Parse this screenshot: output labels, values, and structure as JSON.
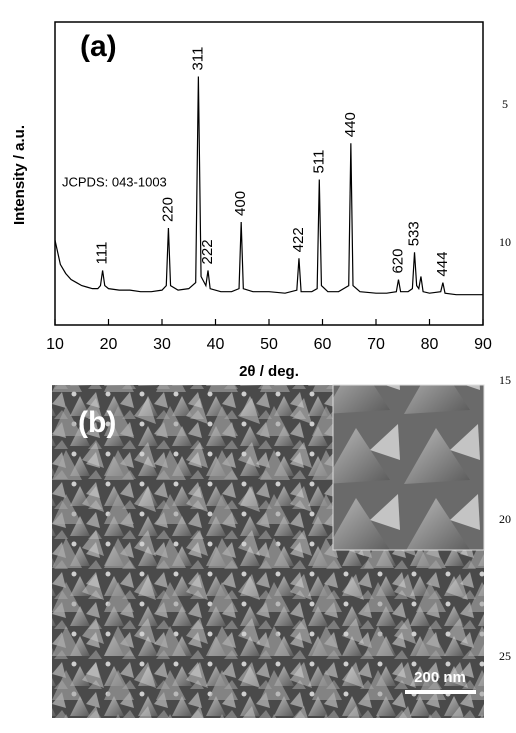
{
  "chart_data": {
    "type": "line",
    "panel_label": "(a)",
    "xlabel": "2θ / deg.",
    "ylabel": "Intensity / a.u.",
    "annotation": "JCPDS: 043-1003",
    "xlim": [
      10,
      90
    ],
    "xticks": [
      10,
      20,
      30,
      40,
      50,
      60,
      70,
      80,
      90
    ],
    "ylim": [
      0,
      100
    ],
    "color": "#000000",
    "x": [
      10,
      11,
      12,
      13,
      14,
      15,
      16,
      17,
      18,
      18.5,
      18.9,
      19.3,
      20,
      22,
      24,
      26,
      28,
      30,
      30.8,
      31.2,
      31.6,
      33,
      35,
      36.3,
      36.8,
      37.3,
      38.2,
      38.6,
      39,
      41,
      43,
      44.4,
      44.8,
      45.2,
      47,
      50,
      53,
      55.2,
      55.6,
      56,
      58,
      59,
      59.4,
      59.8,
      61,
      63,
      64.9,
      65.3,
      65.7,
      67,
      70,
      72,
      73.8,
      74.2,
      74.6,
      76,
      76.8,
      77.2,
      77.6,
      78,
      78.4,
      78.8,
      80,
      82.1,
      82.5,
      82.9,
      85,
      88,
      90
    ],
    "values": [
      28,
      20,
      17,
      15,
      14,
      13,
      12.5,
      12,
      12,
      13,
      18,
      13,
      12,
      11.5,
      11.5,
      11,
      11,
      11.5,
      13,
      32,
      13,
      11.5,
      12,
      14,
      82,
      16,
      13,
      18,
      12,
      11,
      11,
      12,
      34,
      12,
      11,
      11,
      10.5,
      11.5,
      22,
      11,
      11,
      12,
      48,
      13,
      11,
      11,
      13,
      60,
      13,
      11,
      10.5,
      10.5,
      11,
      15,
      11,
      11,
      12,
      24,
      13,
      12,
      16,
      11,
      10.5,
      11,
      14,
      10.5,
      10,
      10,
      10
    ],
    "peaks": [
      {
        "label": "111",
        "x": 18.9,
        "value": 18
      },
      {
        "label": "220",
        "x": 31.2,
        "value": 32
      },
      {
        "label": "311",
        "x": 36.8,
        "value": 82
      },
      {
        "label": "222",
        "x": 38.6,
        "value": 18
      },
      {
        "label": "400",
        "x": 44.8,
        "value": 34
      },
      {
        "label": "422",
        "x": 55.6,
        "value": 22
      },
      {
        "label": "511",
        "x": 59.4,
        "value": 48
      },
      {
        "label": "440",
        "x": 65.3,
        "value": 60
      },
      {
        "label": "620",
        "x": 74.2,
        "value": 15
      },
      {
        "label": "533",
        "x": 77.2,
        "value": 24
      },
      {
        "label": "444",
        "x": 82.5,
        "value": 14
      }
    ]
  },
  "panel_b": {
    "label": "(b)",
    "scale_bar": "200 nm"
  },
  "line_numbers": [
    5,
    10,
    15,
    20,
    25
  ]
}
